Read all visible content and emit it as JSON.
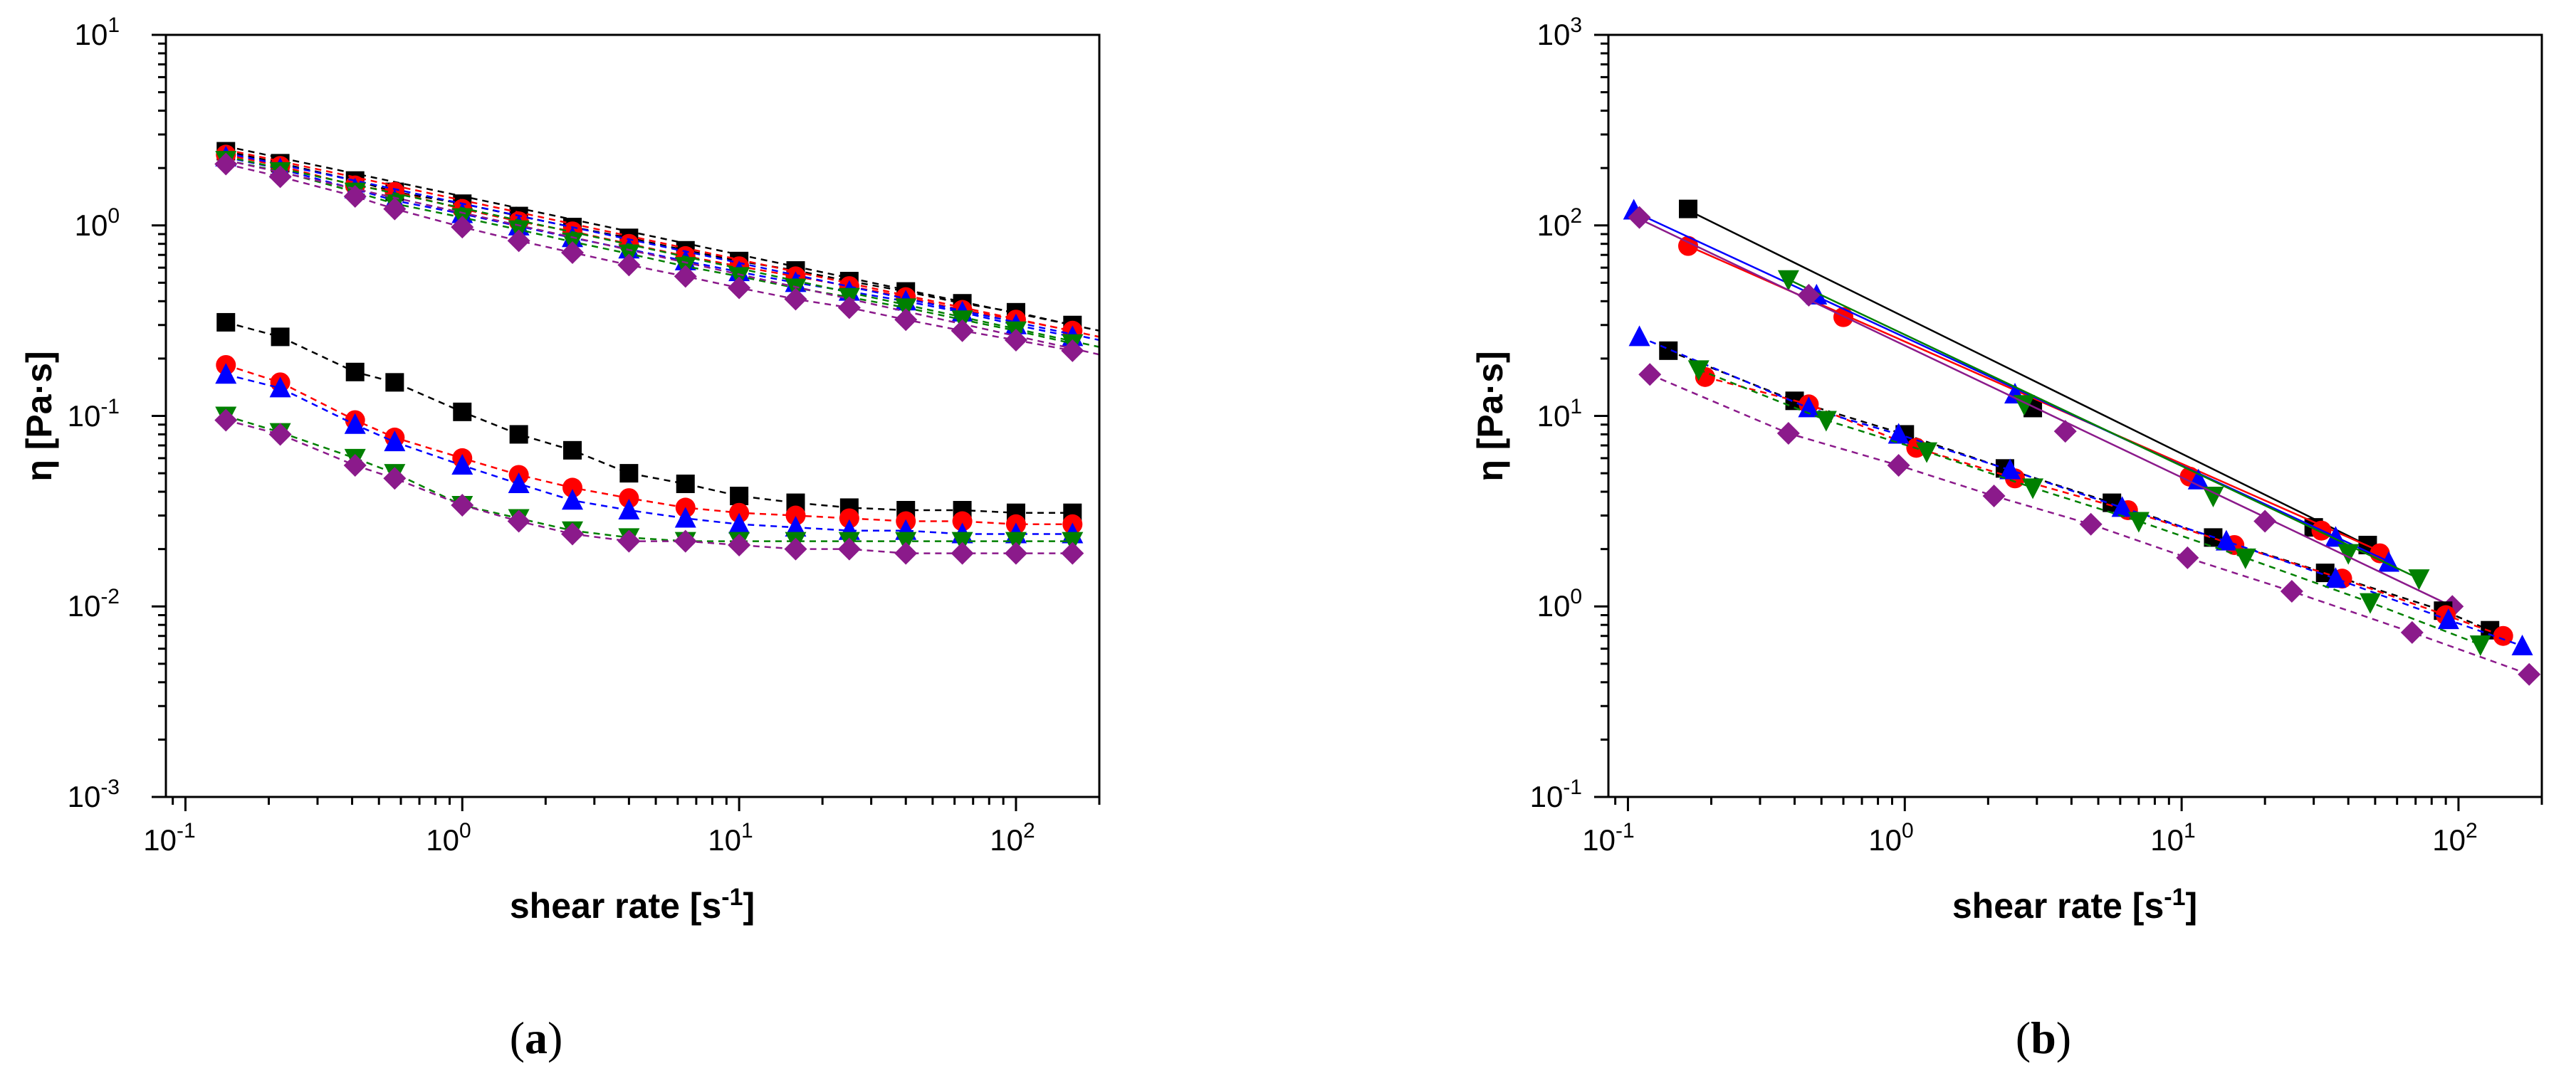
{
  "chart_data": [
    {
      "id": "a",
      "type": "scatter",
      "panel_label": "(a)",
      "panel_label_letter": "a",
      "xlabel": "shear rate [s-1]",
      "xlabel_main": "shear rate [s",
      "xlabel_sup": "-1",
      "xlabel_end": "]",
      "ylabel": "η [Pa·s]",
      "xscale": "log",
      "yscale": "log",
      "xlim": [
        0.085,
        200
      ],
      "ylim": [
        0.001,
        10
      ],
      "xticks": [
        {
          "base": "10",
          "exp": "-1"
        },
        {
          "base": "10",
          "exp": "0"
        },
        {
          "base": "10",
          "exp": "1"
        },
        {
          "base": "10",
          "exp": "2"
        }
      ],
      "yticks": [
        {
          "base": "10",
          "exp": "-3"
        },
        {
          "base": "10",
          "exp": "-2"
        },
        {
          "base": "10",
          "exp": "-1"
        },
        {
          "base": "10",
          "exp": "0"
        },
        {
          "base": "10",
          "exp": "1"
        }
      ],
      "series": [
        {
          "name": "black squares (upper)",
          "marker": "square",
          "color": "#000000",
          "line": "dashed",
          "x": [
            0.14,
            0.22,
            0.41,
            0.57,
            1.0,
            1.6,
            2.5,
            4.0,
            6.4,
            10,
            16,
            25,
            40,
            64,
            100,
            160
          ],
          "y": [
            2.45,
            2.12,
            1.72,
            1.5,
            1.3,
            1.12,
            0.98,
            0.86,
            0.74,
            0.65,
            0.58,
            0.51,
            0.45,
            0.39,
            0.35,
            0.3
          ],
          "fit": {
            "x": [
              0.14,
              200
            ],
            "y": [
              2.6,
              0.28
            ],
            "color": "#000000",
            "style": "dashed"
          }
        },
        {
          "name": "red circles (upper)",
          "marker": "circle",
          "color": "#ff0000",
          "line": "dashed",
          "x": [
            0.14,
            0.22,
            0.41,
            0.57,
            1.0,
            1.6,
            2.5,
            4.0,
            6.4,
            10,
            16,
            25,
            40,
            64,
            100,
            160
          ],
          "y": [
            2.35,
            2.05,
            1.62,
            1.5,
            1.22,
            1.05,
            0.93,
            0.8,
            0.69,
            0.61,
            0.54,
            0.48,
            0.42,
            0.36,
            0.32,
            0.28
          ],
          "fit": {
            "x": [
              0.14,
              200
            ],
            "y": [
              2.5,
              0.26
            ],
            "color": "#ff0000",
            "style": "dashed"
          }
        },
        {
          "name": "blue triangles (upper)",
          "marker": "triangle-up",
          "color": "#0000ff",
          "line": "dashed",
          "x": [
            0.14,
            0.22,
            0.41,
            0.57,
            1.0,
            1.6,
            2.5,
            4.0,
            6.4,
            10,
            16,
            25,
            40,
            64,
            100,
            160
          ],
          "y": [
            2.28,
            1.98,
            1.55,
            1.35,
            1.15,
            0.99,
            0.86,
            0.75,
            0.65,
            0.57,
            0.5,
            0.45,
            0.4,
            0.35,
            0.3,
            0.26
          ],
          "fit": {
            "x": [
              0.14,
              200
            ],
            "y": [
              2.4,
              0.25
            ],
            "color": "#0000ff",
            "style": "dashed"
          }
        },
        {
          "name": "green down-triangles (upper)",
          "marker": "triangle-down",
          "color": "#008000",
          "line": "dashed",
          "x": [
            0.14,
            0.22,
            0.41,
            0.57,
            1.0,
            1.6,
            2.5,
            4.0,
            6.4,
            10,
            16,
            25,
            40,
            64,
            100,
            160
          ],
          "y": [
            2.2,
            1.92,
            1.5,
            1.3,
            1.1,
            0.95,
            0.82,
            0.71,
            0.61,
            0.54,
            0.47,
            0.42,
            0.37,
            0.32,
            0.28,
            0.24
          ],
          "fit": {
            "x": [
              0.14,
              200
            ],
            "y": [
              2.3,
              0.23
            ],
            "color": "#008000",
            "style": "dashed"
          }
        },
        {
          "name": "purple diamonds (upper)",
          "marker": "diamond",
          "color": "#8b1a8b",
          "line": "dashed",
          "x": [
            0.14,
            0.22,
            0.41,
            0.57,
            1.0,
            1.6,
            2.5,
            4.0,
            6.4,
            10,
            16,
            25,
            40,
            64,
            100,
            160
          ],
          "y": [
            2.1,
            1.8,
            1.42,
            1.22,
            0.98,
            0.83,
            0.72,
            0.62,
            0.54,
            0.47,
            0.41,
            0.37,
            0.32,
            0.28,
            0.25,
            0.22
          ],
          "fit": {
            "x": [
              0.14,
              200
            ],
            "y": [
              2.2,
              0.21
            ],
            "color": "#8b1a8b",
            "style": "dashed"
          }
        },
        {
          "name": "black squares (lower)",
          "marker": "square",
          "color": "#000000",
          "line": "dashed",
          "x": [
            0.14,
            0.22,
            0.41,
            0.57,
            1.0,
            1.6,
            2.5,
            4.0,
            6.4,
            10,
            16,
            25,
            40,
            64,
            100,
            160
          ],
          "y": [
            0.31,
            0.26,
            0.17,
            0.15,
            0.105,
            0.08,
            0.066,
            0.05,
            0.044,
            0.038,
            0.035,
            0.033,
            0.032,
            0.032,
            0.031,
            0.031
          ]
        },
        {
          "name": "red circles (lower)",
          "marker": "circle",
          "color": "#ff0000",
          "line": "dashed",
          "x": [
            0.14,
            0.22,
            0.41,
            0.57,
            1.0,
            1.6,
            2.5,
            4.0,
            6.4,
            10,
            16,
            25,
            40,
            64,
            100,
            160
          ],
          "y": [
            0.185,
            0.15,
            0.095,
            0.077,
            0.06,
            0.049,
            0.042,
            0.037,
            0.033,
            0.031,
            0.03,
            0.029,
            0.028,
            0.028,
            0.027,
            0.027
          ]
        },
        {
          "name": "blue triangles (lower)",
          "marker": "triangle-up",
          "color": "#0000ff",
          "line": "dashed",
          "x": [
            0.14,
            0.22,
            0.41,
            0.57,
            1.0,
            1.6,
            2.5,
            4.0,
            6.4,
            10,
            16,
            25,
            40,
            64,
            100,
            160
          ],
          "y": [
            0.165,
            0.14,
            0.09,
            0.073,
            0.055,
            0.044,
            0.036,
            0.032,
            0.029,
            0.027,
            0.026,
            0.025,
            0.025,
            0.024,
            0.024,
            0.024
          ]
        },
        {
          "name": "green down-triangles (lower)",
          "marker": "triangle-down",
          "color": "#008000",
          "line": "dashed",
          "x": [
            0.14,
            0.22,
            0.41,
            0.57,
            1.0,
            1.6,
            2.5,
            4.0,
            6.4,
            10,
            16,
            25,
            40,
            64,
            100,
            160
          ],
          "y": [
            0.1,
            0.082,
            0.06,
            0.05,
            0.034,
            0.029,
            0.025,
            0.023,
            0.022,
            0.022,
            0.022,
            0.022,
            0.022,
            0.022,
            0.022,
            0.022
          ]
        },
        {
          "name": "purple diamonds (lower)",
          "marker": "diamond",
          "color": "#8b1a8b",
          "line": "dashed",
          "x": [
            0.14,
            0.22,
            0.41,
            0.57,
            1.0,
            1.6,
            2.5,
            4.0,
            6.4,
            10,
            16,
            25,
            40,
            64,
            100,
            160
          ],
          "y": [
            0.095,
            0.08,
            0.055,
            0.047,
            0.034,
            0.028,
            0.024,
            0.022,
            0.022,
            0.021,
            0.02,
            0.02,
            0.019,
            0.019,
            0.019,
            0.019
          ]
        }
      ]
    },
    {
      "id": "b",
      "type": "scatter",
      "panel_label": "(b)",
      "panel_label_letter": "b",
      "xlabel": "shear rate [s-1]",
      "xlabel_main": "shear rate [s",
      "xlabel_sup": "-1",
      "xlabel_end": "]",
      "ylabel": "η [Pa·s]",
      "xscale": "log",
      "yscale": "log",
      "xlim": [
        0.085,
        200
      ],
      "ylim": [
        0.1,
        1000
      ],
      "xticks": [
        {
          "base": "10",
          "exp": "-1"
        },
        {
          "base": "10",
          "exp": "0"
        },
        {
          "base": "10",
          "exp": "1"
        },
        {
          "base": "10",
          "exp": "2"
        }
      ],
      "yticks": [
        {
          "base": "10",
          "exp": "-1"
        },
        {
          "base": "10",
          "exp": "0"
        },
        {
          "base": "10",
          "exp": "1"
        },
        {
          "base": "10",
          "exp": "2"
        },
        {
          "base": "10",
          "exp": "3"
        }
      ],
      "series": [
        {
          "name": "black squares (upper)",
          "marker": "square",
          "color": "#000000",
          "line": "none",
          "x": [
            0.165,
            2.9,
            30,
            47
          ],
          "y": [
            122,
            11,
            2.6,
            2.1
          ],
          "fit": {
            "x": [
              0.165,
              50
            ],
            "y": [
              120,
              2.0
            ],
            "color": "#000000",
            "style": "solid"
          }
        },
        {
          "name": "red circles (upper)",
          "marker": "circle",
          "color": "#ff0000",
          "line": "none",
          "x": [
            0.165,
            0.6,
            10.7,
            32,
            52
          ],
          "y": [
            78,
            33,
            4.8,
            2.5,
            1.9
          ],
          "fit": {
            "x": [
              0.165,
              52
            ],
            "y": [
              78,
              1.95
            ],
            "color": "#ff0000",
            "style": "solid"
          }
        },
        {
          "name": "blue triangles (upper)",
          "marker": "triangle-up",
          "color": "#0000ff",
          "line": "none",
          "x": [
            0.105,
            0.48,
            2.5,
            11.5,
            36,
            56
          ],
          "y": [
            120,
            43,
            13,
            4.6,
            2.3,
            1.7
          ],
          "fit": {
            "x": [
              0.105,
              57
            ],
            "y": [
              118,
              1.7
            ],
            "color": "#0000ff",
            "style": "solid"
          }
        },
        {
          "name": "green down-triangles (upper)",
          "marker": "triangle-down",
          "color": "#008000",
          "line": "none",
          "x": [
            0.38,
            2.7,
            13,
            40,
            72
          ],
          "y": [
            52,
            11.5,
            3.8,
            1.9,
            1.4
          ],
          "fit": {
            "x": [
              0.38,
              72
            ],
            "y": [
              52,
              1.4
            ],
            "color": "#008000",
            "style": "solid"
          }
        },
        {
          "name": "purple diamonds (upper)",
          "marker": "diamond",
          "color": "#8b1a8b",
          "line": "none",
          "x": [
            0.11,
            0.45,
            3.8,
            20,
            95
          ],
          "y": [
            110,
            43,
            8.3,
            2.8,
            1.0
          ],
          "fit": {
            "x": [
              0.11,
              95
            ],
            "y": [
              108,
              1.0
            ],
            "color": "#8b1a8b",
            "style": "solid"
          }
        },
        {
          "name": "black squares (lower)",
          "marker": "square",
          "color": "#000000",
          "line": "dashed",
          "x": [
            0.14,
            0.4,
            1.0,
            2.3,
            5.6,
            13,
            33,
            88,
            130
          ],
          "y": [
            22,
            12,
            8,
            5.3,
            3.5,
            2.3,
            1.5,
            0.95,
            0.75
          ]
        },
        {
          "name": "red circles (lower)",
          "marker": "circle",
          "color": "#ff0000",
          "line": "dashed",
          "x": [
            0.19,
            0.45,
            1.1,
            2.5,
            6.4,
            15.5,
            38,
            90,
            145
          ],
          "y": [
            16,
            11.5,
            6.8,
            4.7,
            3.2,
            2.1,
            1.4,
            0.9,
            0.7
          ]
        },
        {
          "name": "blue triangles (lower)",
          "marker": "triangle-up",
          "color": "#0000ff",
          "line": "dashed",
          "x": [
            0.11,
            0.45,
            0.95,
            2.4,
            6.1,
            14.5,
            36,
            92,
            170
          ],
          "y": [
            26,
            11,
            8,
            5.2,
            3.3,
            2.2,
            1.4,
            0.85,
            0.62
          ]
        },
        {
          "name": "green down-triangles (lower)",
          "marker": "triangle-down",
          "color": "#008000",
          "line": "dashed",
          "x": [
            0.18,
            0.52,
            1.2,
            2.9,
            7,
            17,
            48,
            120
          ],
          "y": [
            17.5,
            9.5,
            6.5,
            4.2,
            2.8,
            1.8,
            1.05,
            0.63
          ]
        },
        {
          "name": "purple diamonds (lower)",
          "marker": "diamond",
          "color": "#8b1a8b",
          "line": "dashed",
          "x": [
            0.12,
            0.38,
            0.95,
            2.1,
            4.7,
            10.5,
            25,
            68,
            180
          ],
          "y": [
            16.5,
            8.1,
            5.5,
            3.8,
            2.7,
            1.8,
            1.2,
            0.73,
            0.44
          ]
        }
      ]
    }
  ]
}
